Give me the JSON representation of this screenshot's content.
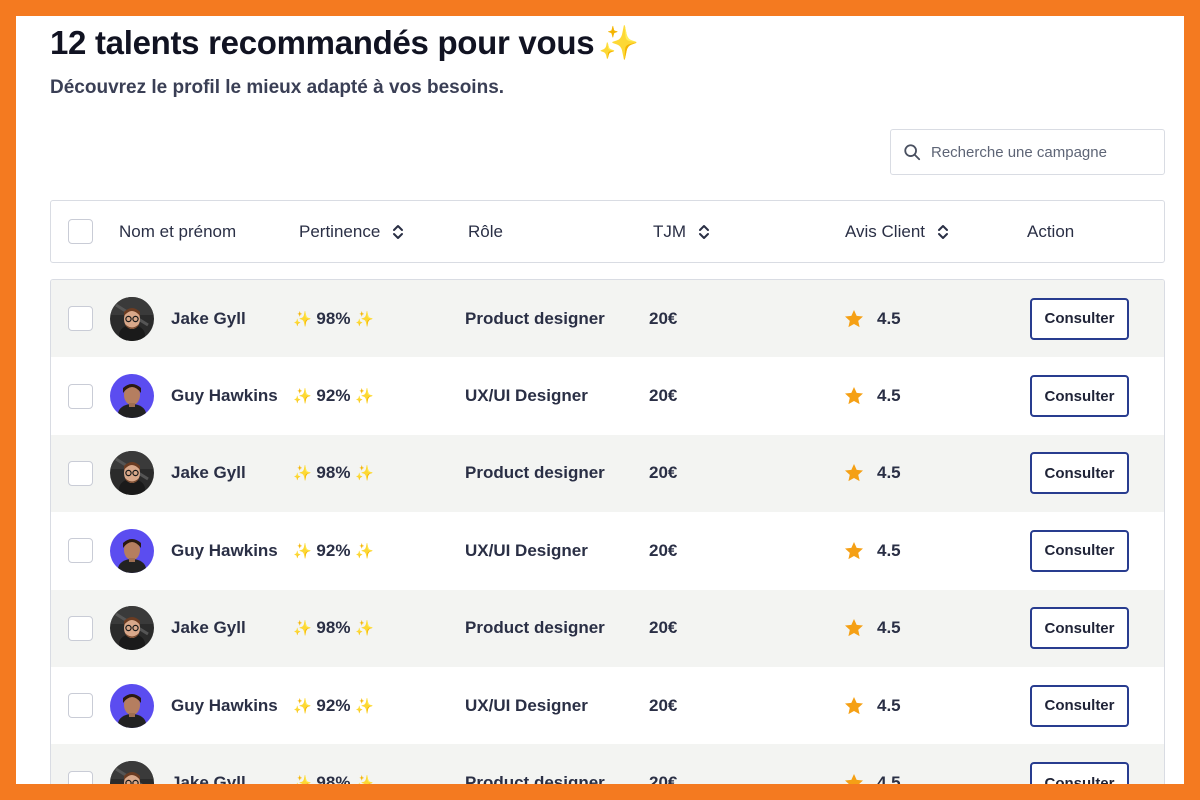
{
  "header": {
    "title": "12 talents recommandés pour vous",
    "title_emoji": "✨",
    "subtitle": "Découvrez le profil le mieux adapté à vos besoins."
  },
  "search": {
    "placeholder": "Recherche une campagne",
    "icon": "search-icon"
  },
  "table": {
    "columns": {
      "name": "Nom et prénom",
      "pertinence": "Pertinence",
      "role": "Rôle",
      "tjm": "TJM",
      "avis": "Avis Client",
      "action": "Action"
    },
    "rows": [
      {
        "name": "Jake Gyll",
        "avatar": "jake",
        "pertinence": "98%",
        "role": "Product designer",
        "tjm": "20€",
        "rating": "4.5",
        "action": "Consulter"
      },
      {
        "name": "Guy Hawkins",
        "avatar": "guy",
        "pertinence": "92%",
        "role": "UX/UI Designer",
        "tjm": "20€",
        "rating": "4.5",
        "action": "Consulter"
      },
      {
        "name": "Jake Gyll",
        "avatar": "jake",
        "pertinence": "98%",
        "role": "Product designer",
        "tjm": "20€",
        "rating": "4.5",
        "action": "Consulter"
      },
      {
        "name": "Guy Hawkins",
        "avatar": "guy",
        "pertinence": "92%",
        "role": "UX/UI Designer",
        "tjm": "20€",
        "rating": "4.5",
        "action": "Consulter"
      },
      {
        "name": "Jake Gyll",
        "avatar": "jake",
        "pertinence": "98%",
        "role": "Product designer",
        "tjm": "20€",
        "rating": "4.5",
        "action": "Consulter"
      },
      {
        "name": "Guy Hawkins",
        "avatar": "guy",
        "pertinence": "92%",
        "role": "UX/UI Designer",
        "tjm": "20€",
        "rating": "4.5",
        "action": "Consulter"
      },
      {
        "name": "Jake Gyll",
        "avatar": "jake",
        "pertinence": "98%",
        "role": "Product designer",
        "tjm": "20€",
        "rating": "4.5",
        "action": "Consulter"
      }
    ]
  },
  "colors": {
    "frame": "#f47a20",
    "row_alt": "#f3f4f2",
    "button_border": "#283c8f",
    "star": "#f5a015",
    "sparkle": "#f5c033",
    "guy_avatar_bg": "#5b4df0",
    "jake_avatar_bg": "#2b2b2b"
  }
}
